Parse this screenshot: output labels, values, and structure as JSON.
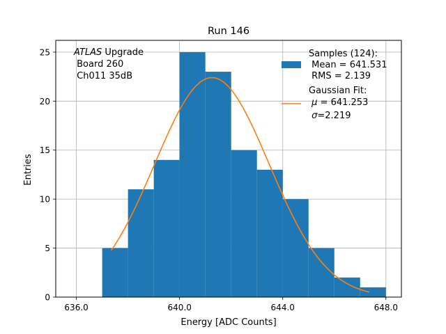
{
  "chart_data": {
    "type": "bar",
    "title": "Run 146",
    "xlabel": "Energy [ADC Counts]",
    "ylabel": "Entries",
    "xlim": [
      635.2,
      648.6
    ],
    "ylim": [
      0,
      26.2
    ],
    "x_ticks": [
      636,
      640,
      644,
      648
    ],
    "x_tick_labels": [
      "636.0",
      "640.0",
      "644.0",
      "648.0"
    ],
    "y_ticks": [
      0,
      5,
      10,
      15,
      20,
      25
    ],
    "grid": true,
    "bins": [
      {
        "x0": 637.0,
        "x1": 638.0,
        "count": 5
      },
      {
        "x0": 638.0,
        "x1": 639.0,
        "count": 11
      },
      {
        "x0": 639.0,
        "x1": 640.0,
        "count": 14
      },
      {
        "x0": 640.0,
        "x1": 641.0,
        "count": 25
      },
      {
        "x0": 641.0,
        "x1": 642.0,
        "count": 23
      },
      {
        "x0": 642.0,
        "x1": 643.0,
        "count": 15
      },
      {
        "x0": 643.0,
        "x1": 644.0,
        "count": 13
      },
      {
        "x0": 644.0,
        "x1": 645.0,
        "count": 10
      },
      {
        "x0": 645.0,
        "x1": 646.0,
        "count": 5
      },
      {
        "x0": 646.0,
        "x1": 647.0,
        "count": 2
      },
      {
        "x0": 647.0,
        "x1": 648.0,
        "count": 1
      }
    ],
    "fit": {
      "mu": 641.253,
      "sigma": 2.219,
      "amplitude": 22.4,
      "x_range": [
        637.35,
        647.35
      ]
    },
    "colors": {
      "histogram": "#1f77b4",
      "fit": "#ff7f0e",
      "grid": "#b0b0b0"
    },
    "annotation": {
      "atlas_word": "ATLAS",
      "line1_rest": " Upgrade",
      "line2": " Board 260",
      "line3": " Ch011 35dB"
    },
    "legend": {
      "location": "upper right",
      "samples_line1": "Samples (124):",
      "samples_line2": " Mean = 641.531",
      "samples_line3": " RMS = 2.139",
      "fit_line1": "Gaussian Fit:",
      "fit_mu_symbol": "μ",
      "fit_mu_value": " = 641.253",
      "fit_sigma_symbol": "σ",
      "fit_sigma_value": "=2.219"
    }
  }
}
